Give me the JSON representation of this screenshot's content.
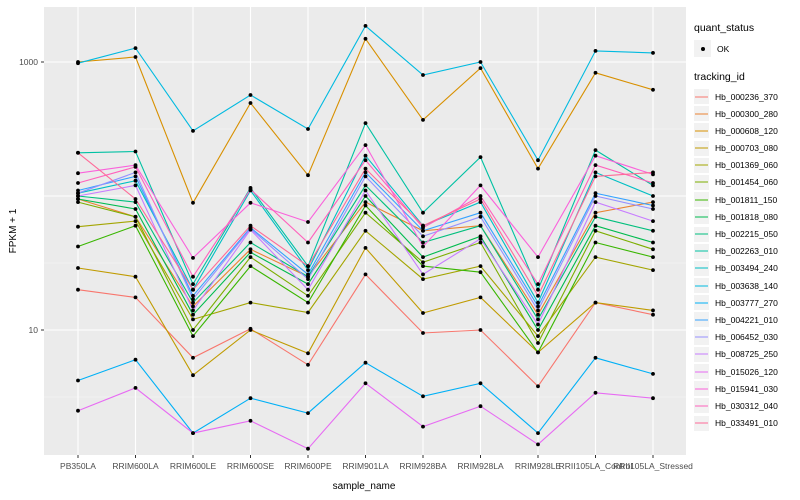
{
  "figure": {
    "y_axis_title": "FPKM + 1",
    "x_axis_title": "sample_name"
  },
  "legend": {
    "quant_status_title": "quant_status",
    "quant_status_items": [
      {
        "label": "OK",
        "symbol": "point"
      }
    ],
    "tracking_id_title": "tracking_id"
  },
  "chart_data": {
    "type": "line",
    "title": "",
    "xlabel": "sample_name",
    "ylabel": "FPKM + 1",
    "y_scale": "log10",
    "y_tick_values": [
      1000,
      10
    ],
    "y_tick_labels": [
      "1000",
      "10"
    ],
    "ylim": [
      1.2,
      2500
    ],
    "grid": true,
    "legend_position": "right",
    "point_color": "#000000",
    "quant_status": "OK",
    "categories": [
      "PB350LA",
      "RRIM600LA",
      "RRIM600LE",
      "RRIM600SE",
      "RRIM600PE",
      "RRIM901LA",
      "RRIM928BA",
      "RRIM928LA",
      "RRIM928LE",
      "RRII105LA_Control",
      "RRII105LA_Stressed"
    ],
    "series": [
      {
        "name": "Hb_000236_370",
        "color": "#F8766D",
        "values": [
          20,
          17.5,
          6.2,
          10.2,
          5.5,
          26,
          9.5,
          10,
          3.8,
          16,
          13
        ]
      },
      {
        "name": "Hb_000300_280",
        "color": "#EA8331",
        "values": [
          95,
          70,
          15,
          40,
          25,
          90,
          55,
          60,
          13,
          75,
          90
        ]
      },
      {
        "name": "Hb_000608_120",
        "color": "#D89000",
        "values": [
          1000,
          1090,
          89,
          494,
          143,
          1490,
          370,
          900,
          160,
          830,
          620
        ]
      },
      {
        "name": "Hb_000703_080",
        "color": "#C09B00",
        "values": [
          29,
          25,
          4.6,
          10,
          6.7,
          41,
          13.4,
          17.5,
          6.8,
          16,
          14
        ]
      },
      {
        "name": "Hb_001369_060",
        "color": "#A3A500",
        "values": [
          59,
          65,
          12,
          16,
          13.5,
          55,
          24,
          30,
          9,
          35,
          28
        ]
      },
      {
        "name": "Hb_001454_060",
        "color": "#7CAE00",
        "values": [
          90,
          70,
          10,
          35,
          18,
          75,
          32,
          45,
          8,
          55,
          40
        ]
      },
      {
        "name": "Hb_001811_150",
        "color": "#39B600",
        "values": [
          42,
          60,
          9,
          30,
          16,
          85,
          30,
          27,
          6.8,
          45,
          35
        ]
      },
      {
        "name": "Hb_001818_080",
        "color": "#00BB4E",
        "values": [
          95,
          80,
          13,
          38,
          22,
          100,
          35,
          50,
          10,
          60,
          45
        ]
      },
      {
        "name": "Hb_002215_050",
        "color": "#00BF7D",
        "values": [
          100,
          90,
          16,
          45,
          25,
          120,
          45,
          60,
          12,
          70,
          55
        ]
      },
      {
        "name": "Hb_002263_010",
        "color": "#00C1A3",
        "values": [
          210,
          215,
          22,
          115,
          30,
          350,
          75,
          195,
          20,
          220,
          120
        ]
      },
      {
        "name": "Hb_003494_240",
        "color": "#00BFC4",
        "values": [
          105,
          130,
          20,
          110,
          28,
          200,
          60,
          90,
          16,
          150,
          100
        ]
      },
      {
        "name": "Hb_003638_140",
        "color": "#00BAE0",
        "values": [
          980,
          1270,
          306,
          567,
          316,
          1860,
          800,
          1000,
          185,
          1210,
          1170
        ]
      },
      {
        "name": "Hb_003777_270",
        "color": "#00B0F6",
        "values": [
          4.2,
          6,
          1.7,
          3.1,
          2.4,
          5.7,
          3.2,
          4.0,
          1.7,
          6.2,
          4.7
        ]
      },
      {
        "name": "Hb_004221_010",
        "color": "#35A2FF",
        "values": [
          110,
          140,
          18,
          58,
          26,
          150,
          55,
          75,
          15,
          105,
          85
        ]
      },
      {
        "name": "Hb_006452_030",
        "color": "#9590FF",
        "values": [
          105,
          150,
          17,
          57,
          24,
          140,
          50,
          70,
          14,
          100,
          80
        ]
      },
      {
        "name": "Hb_008725_250",
        "color": "#C77CFF",
        "values": [
          100,
          120,
          14,
          56,
          20,
          110,
          26,
          48,
          11,
          90,
          65
        ]
      },
      {
        "name": "Hb_015026_120",
        "color": "#E76BF3",
        "values": [
          2.5,
          3.7,
          1.7,
          2.1,
          1.3,
          4.0,
          1.9,
          2.7,
          1.4,
          3.4,
          3.1
        ]
      },
      {
        "name": "Hb_015941_030",
        "color": "#FA62DB",
        "values": [
          148,
          170,
          34.5,
          89,
          64,
          240,
          42,
          120,
          35,
          200,
          145
        ]
      },
      {
        "name": "Hb_030312_040",
        "color": "#FF62BC",
        "values": [
          125,
          165,
          25,
          112,
          45,
          185,
          58,
          100,
          22,
          170,
          125
        ]
      },
      {
        "name": "Hb_033491_010",
        "color": "#FF6A98",
        "values": [
          210,
          95,
          20,
          60,
          30,
          160,
          60,
          95,
          18,
          140,
          150
        ]
      }
    ]
  }
}
